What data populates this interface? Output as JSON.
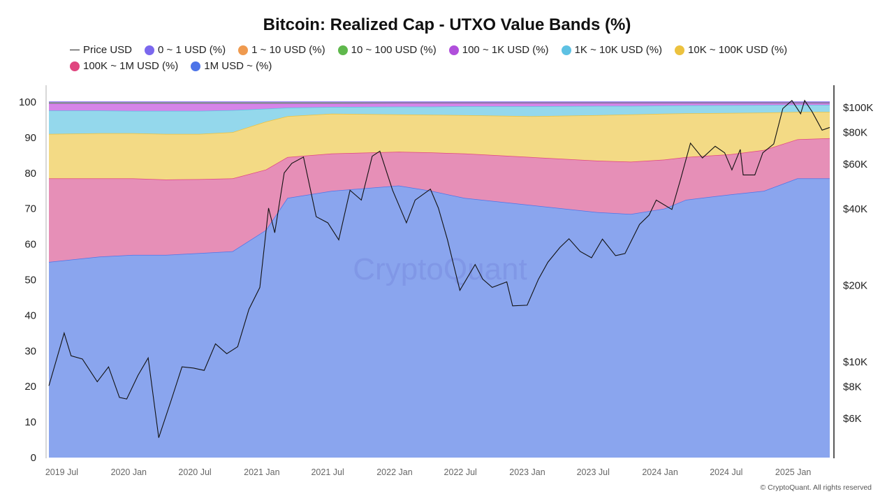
{
  "chart_data": {
    "type": "area",
    "title": "Bitcoin: Realized Cap - UTXO Value Bands (%)",
    "stacked": true,
    "x_range": [
      "2019-05-15",
      "2025-03-31"
    ],
    "x_ticks": [
      {
        "date": "2019-07-01",
        "label": "2019 Jul"
      },
      {
        "date": "2020-01-01",
        "label": "2020 Jan"
      },
      {
        "date": "2020-07-01",
        "label": "2020 Jul"
      },
      {
        "date": "2021-01-01",
        "label": "2021 Jan"
      },
      {
        "date": "2021-07-01",
        "label": "2021 Jul"
      },
      {
        "date": "2022-01-01",
        "label": "2022 Jan"
      },
      {
        "date": "2022-07-01",
        "label": "2022 Jul"
      },
      {
        "date": "2023-01-01",
        "label": "2023 Jan"
      },
      {
        "date": "2023-07-01",
        "label": "2023 Jul"
      },
      {
        "date": "2024-01-01",
        "label": "2024 Jan"
      },
      {
        "date": "2024-07-01",
        "label": "2024 Jul"
      },
      {
        "date": "2025-01-01",
        "label": "2025 Jan"
      }
    ],
    "y_left": {
      "range": [
        0,
        100
      ],
      "ticks": [
        0,
        10,
        20,
        30,
        40,
        50,
        60,
        70,
        80,
        90,
        100
      ]
    },
    "y_right": {
      "scale": "log",
      "range": [
        4500,
        112000
      ],
      "ticks": [
        {
          "v": 6000,
          "label": "$6K"
        },
        {
          "v": 8000,
          "label": "$8K"
        },
        {
          "v": 10000,
          "label": "$10K"
        },
        {
          "v": 20000,
          "label": "$20K"
        },
        {
          "v": 40000,
          "label": "$40K"
        },
        {
          "v": 60000,
          "label": "$60K"
        },
        {
          "v": 80000,
          "label": "$80K"
        },
        {
          "v": 100000,
          "label": "$100K"
        }
      ]
    },
    "grid": false,
    "legend_position": "top",
    "dates": [
      "2019-05-15",
      "2019-10-01",
      "2020-01-01",
      "2020-04-01",
      "2020-07-01",
      "2020-10-01",
      "2021-01-01",
      "2021-03-01",
      "2021-07-01",
      "2022-01-01",
      "2022-04-01",
      "2022-07-01",
      "2023-01-01",
      "2023-07-01",
      "2023-10-01",
      "2024-01-01",
      "2024-03-01",
      "2024-07-01",
      "2024-10-01",
      "2025-01-01",
      "2025-03-31"
    ],
    "series": [
      {
        "name": "1M USD ~ (%)",
        "color": "#4d74e8",
        "fill": "#8aa5ee",
        "values": [
          55,
          56.5,
          57,
          57,
          57.5,
          58,
          64,
          73,
          75,
          76.5,
          75,
          73,
          71,
          69,
          68.5,
          70,
          72.5,
          74,
          75,
          78.5,
          78.5
        ]
      },
      {
        "name": "100K ~ 1M USD (%)",
        "color": "#e0457f",
        "fill": "#e68fb7",
        "values": [
          23.5,
          22,
          21.5,
          21.2,
          20.8,
          20.5,
          17,
          11.5,
          10.5,
          9.5,
          10.8,
          12.5,
          13.5,
          14.5,
          14.7,
          13.8,
          12,
          11.3,
          11.5,
          11,
          11.3
        ]
      },
      {
        "name": "10K ~ 100K USD (%)",
        "color": "#ecc23f",
        "fill": "#f3da85",
        "values": [
          12.5,
          12.7,
          12.7,
          12.8,
          12.7,
          13,
          13.5,
          11.5,
          11.2,
          10.5,
          10.6,
          10.8,
          11.5,
          12.8,
          13.3,
          12.9,
          12.3,
          11.6,
          10.5,
          7.7,
          7.4
        ]
      },
      {
        "name": "1K ~ 10K USD (%)",
        "color": "#5ec1e3",
        "fill": "#94d8ec",
        "values": [
          6.6,
          6.4,
          6.3,
          6.5,
          6.5,
          6.2,
          3.6,
          2.4,
          1.9,
          2.2,
          2.3,
          2.5,
          2.8,
          2.6,
          2.4,
          2.3,
          2.25,
          2.2,
          2.15,
          2.0,
          2.0
        ]
      },
      {
        "name": "100 ~ 1K USD (%)",
        "color": "#b04fdb",
        "fill": "#d585e8",
        "values": [
          2.0,
          2.0,
          2.1,
          2.1,
          2.1,
          1.9,
          1.5,
          1.2,
          1.0,
          1.0,
          1.0,
          0.9,
          0.9,
          0.8,
          0.8,
          0.7,
          0.65,
          0.6,
          0.55,
          0.5,
          0.5
        ]
      },
      {
        "name": "10 ~ 100 USD (%)",
        "color": "#5fb84c",
        "fill": "#7cc96a",
        "values": [
          0.25,
          0.25,
          0.25,
          0.25,
          0.25,
          0.25,
          0.25,
          0.25,
          0.25,
          0.15,
          0.15,
          0.15,
          0.15,
          0.15,
          0.15,
          0.15,
          0.15,
          0.15,
          0.15,
          0.15,
          0.15
        ]
      },
      {
        "name": "1 ~ 10 USD (%)",
        "color": "#ef9a4f",
        "fill": "#f2b27a",
        "values": [
          0.1,
          0.1,
          0.1,
          0.1,
          0.1,
          0.1,
          0.1,
          0.1,
          0.1,
          0.1,
          0.1,
          0.1,
          0.1,
          0.1,
          0.1,
          0.1,
          0.1,
          0.1,
          0.1,
          0.1,
          0.1
        ]
      },
      {
        "name": "0 ~ 1 USD (%)",
        "color": "#7b68ee",
        "fill": "#9a8cf2",
        "values": [
          0.05,
          0.05,
          0.05,
          0.05,
          0.05,
          0.05,
          0.05,
          0.05,
          0.05,
          0.05,
          0.05,
          0.05,
          0.05,
          0.05,
          0.05,
          0.05,
          0.05,
          0.05,
          0.05,
          0.05,
          0.05
        ]
      }
    ],
    "price": {
      "name": "Price USD",
      "color": "#111111",
      "dates": [
        "2019-05-15",
        "2019-06-26",
        "2019-07-15",
        "2019-08-15",
        "2019-09-25",
        "2019-10-26",
        "2019-11-25",
        "2019-12-15",
        "2020-01-15",
        "2020-02-12",
        "2020-03-12",
        "2020-04-15",
        "2020-05-15",
        "2020-06-15",
        "2020-07-15",
        "2020-08-15",
        "2020-09-15",
        "2020-10-15",
        "2020-11-15",
        "2020-12-15",
        "2021-01-08",
        "2021-01-25",
        "2021-02-20",
        "2021-03-13",
        "2021-04-14",
        "2021-05-19",
        "2021-06-20",
        "2021-07-20",
        "2021-08-20",
        "2021-09-20",
        "2021-10-20",
        "2021-11-10",
        "2021-12-15",
        "2022-01-22",
        "2022-02-15",
        "2022-03-29",
        "2022-04-20",
        "2022-05-15",
        "2022-06-18",
        "2022-07-30",
        "2022-08-20",
        "2022-09-15",
        "2022-10-25",
        "2022-11-10",
        "2022-12-20",
        "2023-01-20",
        "2023-02-15",
        "2023-03-20",
        "2023-04-14",
        "2023-05-15",
        "2023-06-15",
        "2023-07-15",
        "2023-08-20",
        "2023-09-15",
        "2023-10-25",
        "2023-11-20",
        "2023-12-10",
        "2024-01-22",
        "2024-02-15",
        "2024-03-13",
        "2024-04-15",
        "2024-05-20",
        "2024-06-15",
        "2024-07-05",
        "2024-07-28",
        "2024-08-05",
        "2024-09-06",
        "2024-09-28",
        "2024-10-28",
        "2024-11-22",
        "2024-12-17",
        "2025-01-10",
        "2025-01-21",
        "2025-02-10",
        "2025-03-10",
        "2025-03-31"
      ],
      "values": [
        8000,
        12900,
        10500,
        10200,
        8300,
        9500,
        7200,
        7100,
        8800,
        10300,
        5000,
        7000,
        9500,
        9400,
        9200,
        11700,
        10700,
        11400,
        16000,
        19500,
        40000,
        32000,
        55000,
        60000,
        63500,
        37000,
        35000,
        30000,
        47000,
        43000,
        64000,
        67000,
        47000,
        35000,
        43000,
        47500,
        40000,
        30000,
        19000,
        24000,
        21000,
        19500,
        20500,
        16500,
        16600,
        21000,
        24500,
        28000,
        30300,
        27000,
        25500,
        30200,
        26000,
        26500,
        34500,
        37500,
        43000,
        39500,
        52000,
        72000,
        63000,
        70000,
        66000,
        56500,
        68000,
        54000,
        54000,
        66000,
        71500,
        98500,
        106000,
        94000,
        106000,
        96000,
        81000,
        83000
      ]
    }
  },
  "legend": [
    "Price USD",
    "0 ~ 1 USD (%)",
    "1 ~ 10 USD (%)",
    "10 ~ 100 USD (%)",
    "100 ~ 1K USD (%)",
    "1K ~ 10K USD (%)",
    "10K ~ 100K USD (%)",
    "100K ~ 1M USD (%)",
    "1M USD ~ (%)"
  ],
  "watermark": "CryptoQuant",
  "copyright": "© CryptoQuant. All rights reserved"
}
